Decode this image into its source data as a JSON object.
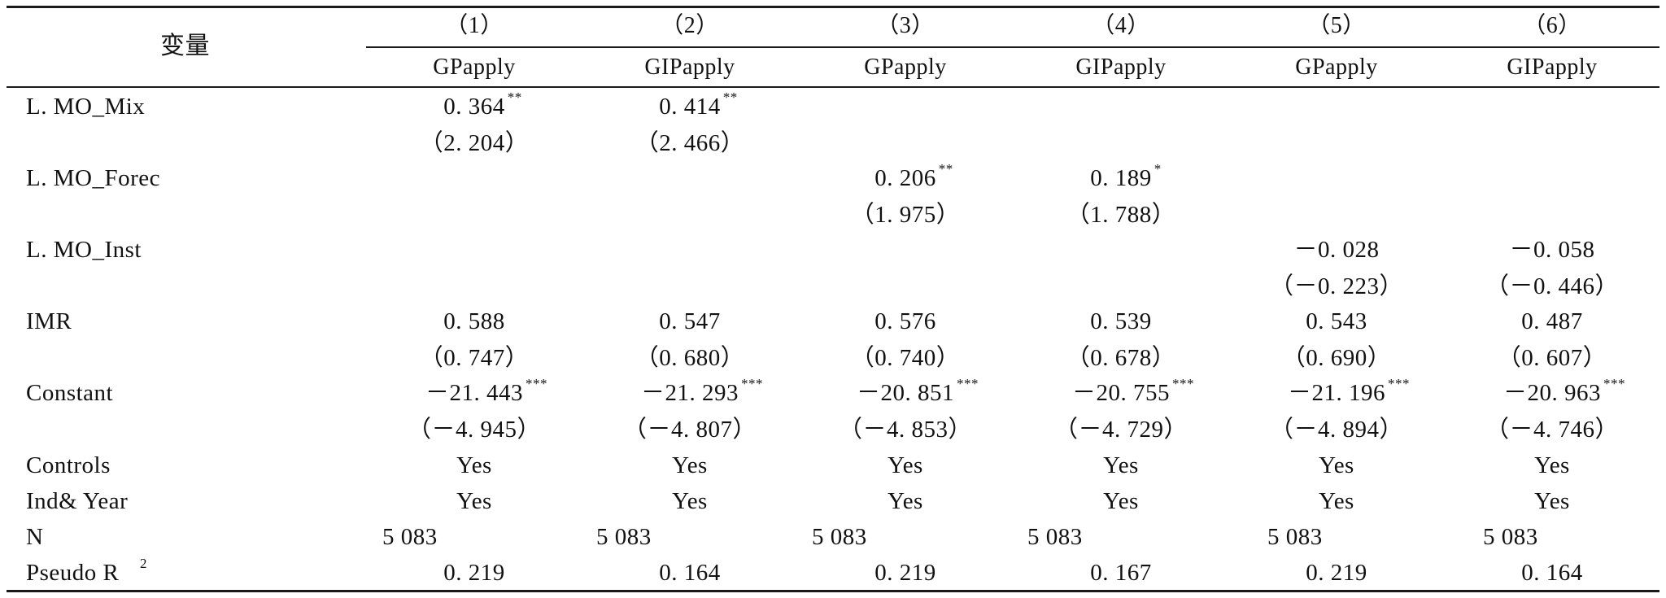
{
  "table": {
    "header": {
      "var_label": "变量",
      "col_nums": [
        "（1）",
        "（2）",
        "（3）",
        "（4）",
        "（5）",
        "（6）"
      ],
      "dep_vars": [
        "GPapply",
        "GIPapply",
        "GPapply",
        "GIPapply",
        "GPapply",
        "GIPapply"
      ]
    },
    "rows": [
      {
        "label": "L. MO_Mix",
        "coef": [
          "0. 364",
          "0. 414",
          "",
          "",
          "",
          ""
        ],
        "stars": [
          "**",
          "**",
          "",
          "",
          "",
          ""
        ],
        "t": [
          "（2. 204）",
          "（2. 466）",
          "",
          "",
          "",
          ""
        ]
      },
      {
        "label": "L. MO_Forec",
        "coef": [
          "",
          "",
          "0. 206",
          "0. 189",
          "",
          ""
        ],
        "stars": [
          "",
          "",
          "**",
          "*",
          "",
          ""
        ],
        "t": [
          "",
          "",
          "（1. 975）",
          "（1. 788）",
          "",
          ""
        ]
      },
      {
        "label": "L. MO_Inst",
        "coef": [
          "",
          "",
          "",
          "",
          "－0. 028",
          "－0. 058"
        ],
        "stars": [
          "",
          "",
          "",
          "",
          "",
          ""
        ],
        "t": [
          "",
          "",
          "",
          "",
          "（－0. 223）",
          "（－0. 446）"
        ]
      },
      {
        "label": "IMR",
        "coef": [
          "0. 588",
          "0. 547",
          "0. 576",
          "0. 539",
          "0. 543",
          "0. 487"
        ],
        "stars": [
          "",
          "",
          "",
          "",
          "",
          ""
        ],
        "t": [
          "（0. 747）",
          "（0. 680）",
          "（0. 740）",
          "（0. 678）",
          "（0. 690）",
          "（0. 607）"
        ]
      },
      {
        "label": "Constant",
        "coef": [
          "－21. 443",
          "－21. 293",
          "－20. 851",
          "－20. 755",
          "－21. 196",
          "－20. 963"
        ],
        "stars": [
          "***",
          "***",
          "***",
          "***",
          "***",
          "***"
        ],
        "t": [
          "（－4. 945）",
          "（－4. 807）",
          "（－4. 853）",
          "（－4. 729）",
          "（－4. 894）",
          "（－4. 746）"
        ]
      }
    ],
    "controls": {
      "label": "Controls",
      "values": [
        "Yes",
        "Yes",
        "Yes",
        "Yes",
        "Yes",
        "Yes"
      ]
    },
    "indyear": {
      "label": "Ind& Year",
      "values": [
        "Yes",
        "Yes",
        "Yes",
        "Yes",
        "Yes",
        "Yes"
      ]
    },
    "n": {
      "label": "N",
      "values": [
        "5 083",
        "5 083",
        "5 083",
        "5 083",
        "5 083",
        "5 083"
      ]
    },
    "pseudo": {
      "label": "Pseudo R",
      "label_sup": "2",
      "values": [
        "0. 219",
        "0. 164",
        "0. 219",
        "0. 167",
        "0. 219",
        "0. 164"
      ]
    }
  }
}
